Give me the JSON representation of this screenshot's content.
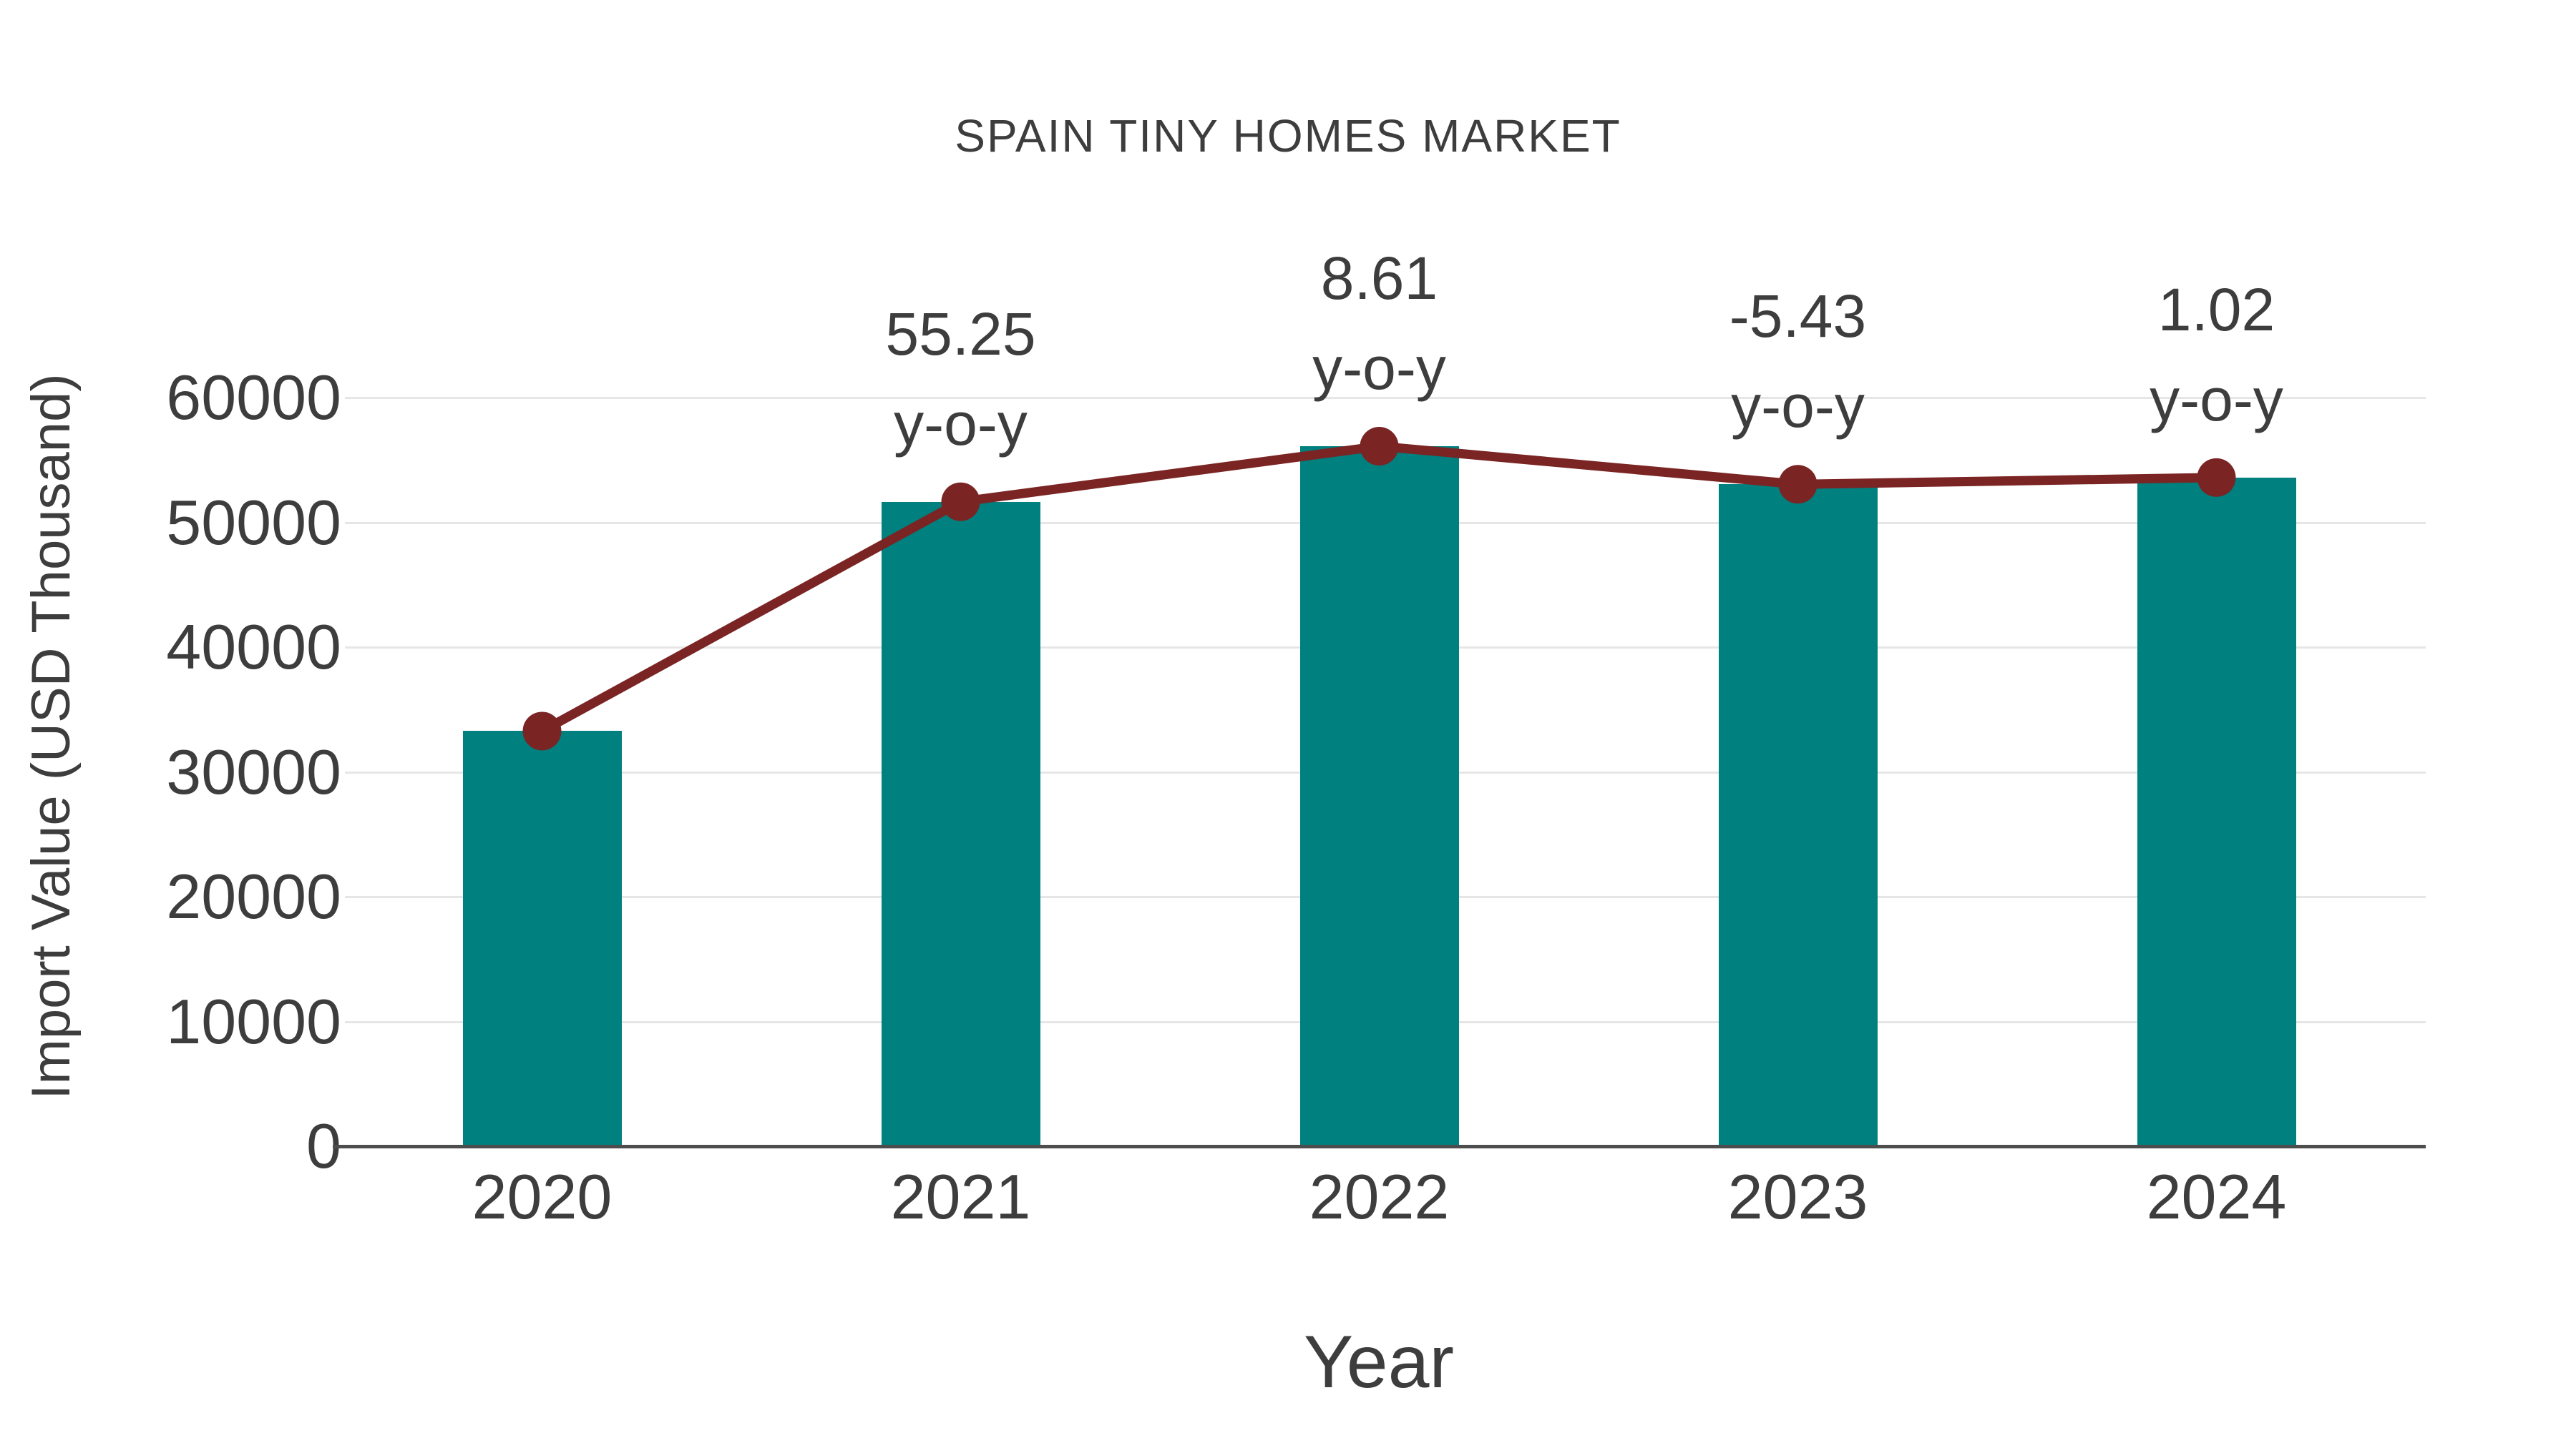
{
  "chart": {
    "title": "SPAIN TINY HOMES MARKET",
    "x_axis_label": "Year",
    "y_axis_label": "Import Value (USD Thousand)"
  },
  "chart_data": {
    "type": "bar",
    "title": "SPAIN TINY HOMES MARKET",
    "xlabel": "Year",
    "ylabel": "Import Value (USD Thousand)",
    "categories": [
      "2020",
      "2021",
      "2022",
      "2023",
      "2024"
    ],
    "series": [
      {
        "name": "Import Value (bars)",
        "type": "bar",
        "color": "#00807f",
        "values": [
          33270,
          51650,
          56100,
          53050,
          53590
        ]
      },
      {
        "name": "Import Value (trend line with markers)",
        "type": "line",
        "color": "#7a2423",
        "values": [
          33270,
          51650,
          56100,
          53050,
          53590
        ]
      }
    ],
    "annotations": [
      {
        "category": "2021",
        "value": "55.25",
        "suffix": "y-o-y"
      },
      {
        "category": "2022",
        "value": "8.61",
        "suffix": "y-o-y"
      },
      {
        "category": "2023",
        "value": "-5.43",
        "suffix": "y-o-y"
      },
      {
        "category": "2024",
        "value": "1.02",
        "suffix": "y-o-y"
      }
    ],
    "y_ticks": [
      0,
      10000,
      20000,
      30000,
      40000,
      50000,
      60000
    ],
    "ylim": [
      0,
      63000
    ],
    "grid": "horizontal",
    "legend": "none",
    "colors": {
      "bar": "#00807f",
      "line": "#7a2423",
      "text": "#3d3d3d",
      "axis": "#4d4d4d",
      "gridline": "#e6e6e6",
      "background": "#ffffff"
    }
  }
}
